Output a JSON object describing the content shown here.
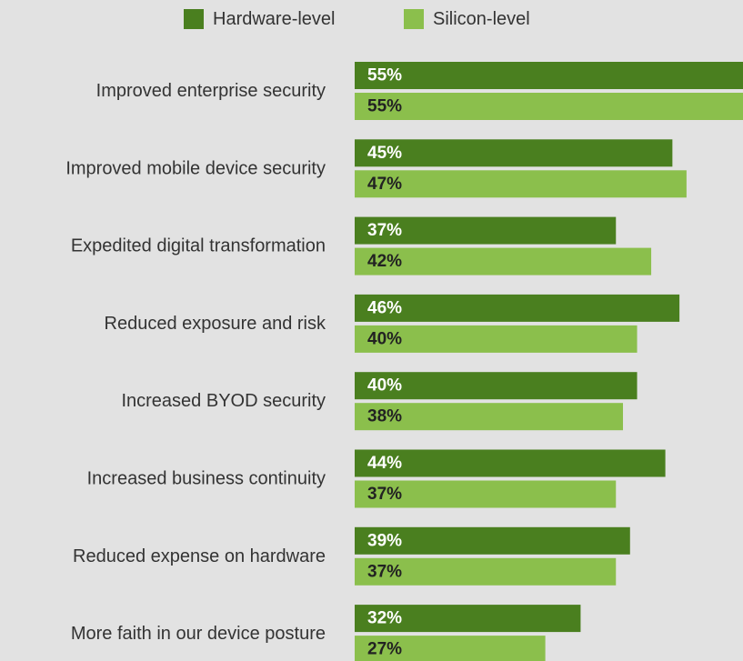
{
  "colors": {
    "hardware": "#4a7f1f",
    "silicon": "#8bbf4c",
    "background": "#e2e2e2",
    "category_text": "#333333",
    "value_text_hardware": "#ffffff",
    "value_text_silicon": "#222222"
  },
  "legend": [
    {
      "label": "Hardware-level"
    },
    {
      "label": "Silicon-level"
    }
  ],
  "chart_data": {
    "type": "bar",
    "orientation": "horizontal",
    "title": "",
    "xlabel": "",
    "ylabel": "",
    "xlim": [
      0,
      55
    ],
    "grid": false,
    "legend_position": "top-center",
    "categories": [
      "Improved enterprise security",
      "Improved mobile device security",
      "Expedited digital transformation",
      "Reduced exposure and risk",
      "Increased BYOD security",
      "Increased business continuity",
      "Reduced expense on hardware",
      "More faith in our device posture"
    ],
    "series": [
      {
        "name": "Hardware-level",
        "values": [
          55,
          45,
          37,
          46,
          40,
          44,
          39,
          32
        ],
        "labels": [
          "55%",
          "45%",
          "37%",
          "46%",
          "40%",
          "44%",
          "39%",
          "32%"
        ]
      },
      {
        "name": "Silicon-level",
        "values": [
          55,
          47,
          42,
          40,
          38,
          37,
          37,
          27
        ],
        "labels": [
          "55%",
          "47%",
          "42%",
          "40%",
          "38%",
          "37%",
          "37%",
          "27%"
        ]
      }
    ]
  }
}
